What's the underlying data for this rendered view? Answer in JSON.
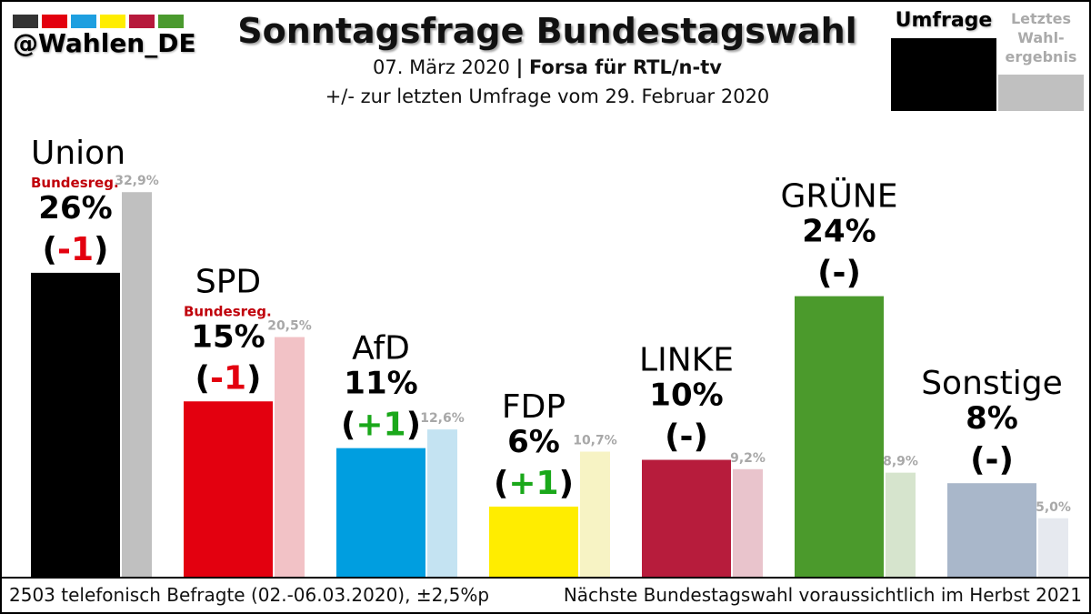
{
  "brand": {
    "handle": "@Wahlen_DE",
    "colors": [
      "#333333",
      "#e3000f",
      "#1e9fe0",
      "#ffed00",
      "#b7193c",
      "#4a9a2e"
    ]
  },
  "header": {
    "title": "Sonntagsfrage Bundestagswahl",
    "date": "07. März 2020",
    "separator": "|",
    "institute": "Forsa für RTL/n-tv",
    "comparison": "+/- zur letzten Umfrage vom 29. Februar 2020"
  },
  "legend": {
    "poll_label": "Umfrage",
    "last_result_label_line1": "Letztes",
    "last_result_label_line2": "Wahl-",
    "last_result_label_line3": "ergebnis"
  },
  "footer": {
    "left": "2503 telefonisch Befragte (02.-06.03.2020),  ±2,5%p",
    "right": "Nächste Bundestagswahl voraussichtlich im Herbst 2021"
  },
  "chart_data": {
    "type": "bar",
    "title": "Sonntagsfrage Bundestagswahl",
    "unit": "%",
    "ylim": [
      0,
      40
    ],
    "grid": false,
    "series": [
      {
        "name": "Umfrage",
        "values": [
          26,
          15,
          11,
          6,
          10,
          24,
          8
        ]
      },
      {
        "name": "Letztes Wahlergebnis",
        "values": [
          32.9,
          20.5,
          12.6,
          10.7,
          9.2,
          8.9,
          5.0
        ]
      }
    ],
    "categories": [
      "Union",
      "SPD",
      "AfD",
      "FDP",
      "LINKE",
      "GRÜNE",
      "Sonstige"
    ],
    "parties": [
      {
        "name": "Union",
        "poll": 26,
        "poll_label": "26%",
        "change": "-1",
        "change_dir": "down",
        "last": 32.9,
        "last_label": "32,9%",
        "gov": "Bundesreg.",
        "color": "#000000",
        "last_color": "#c0c0c0"
      },
      {
        "name": "SPD",
        "poll": 15,
        "poll_label": "15%",
        "change": "-1",
        "change_dir": "down",
        "last": 20.5,
        "last_label": "20,5%",
        "gov": "Bundesreg.",
        "color": "#e3000f",
        "last_color": "#f2c2c6"
      },
      {
        "name": "AfD",
        "poll": 11,
        "poll_label": "11%",
        "change": "+1",
        "change_dir": "up",
        "last": 12.6,
        "last_label": "12,6%",
        "gov": "",
        "color": "#009ee0",
        "last_color": "#c4e3f2"
      },
      {
        "name": "FDP",
        "poll": 6,
        "poll_label": "6%",
        "change": "+1",
        "change_dir": "up",
        "last": 10.7,
        "last_label": "10,7%",
        "gov": "",
        "color": "#ffed00",
        "last_color": "#f7f3c4"
      },
      {
        "name": "LINKE",
        "poll": 10,
        "poll_label": "10%",
        "change": "-",
        "change_dir": "none",
        "last": 9.2,
        "last_label": "9,2%",
        "gov": "",
        "color": "#b71c3c",
        "last_color": "#e9c4cc"
      },
      {
        "name": "GRÜNE",
        "poll": 24,
        "poll_label": "24%",
        "change": "-",
        "change_dir": "none",
        "last": 8.9,
        "last_label": "8,9%",
        "gov": "",
        "color": "#4b9a2c",
        "last_color": "#d6e4cd"
      },
      {
        "name": "Sonstige",
        "poll": 8,
        "poll_label": "8%",
        "change": "-",
        "change_dir": "none",
        "last": 5.0,
        "last_label": "5,0%",
        "gov": "",
        "color": "#a9b7ca",
        "last_color": "#e6e9ef"
      }
    ],
    "change_colors": {
      "down": "#e3000f",
      "up": "#1aa81a",
      "none": "#000000"
    }
  }
}
